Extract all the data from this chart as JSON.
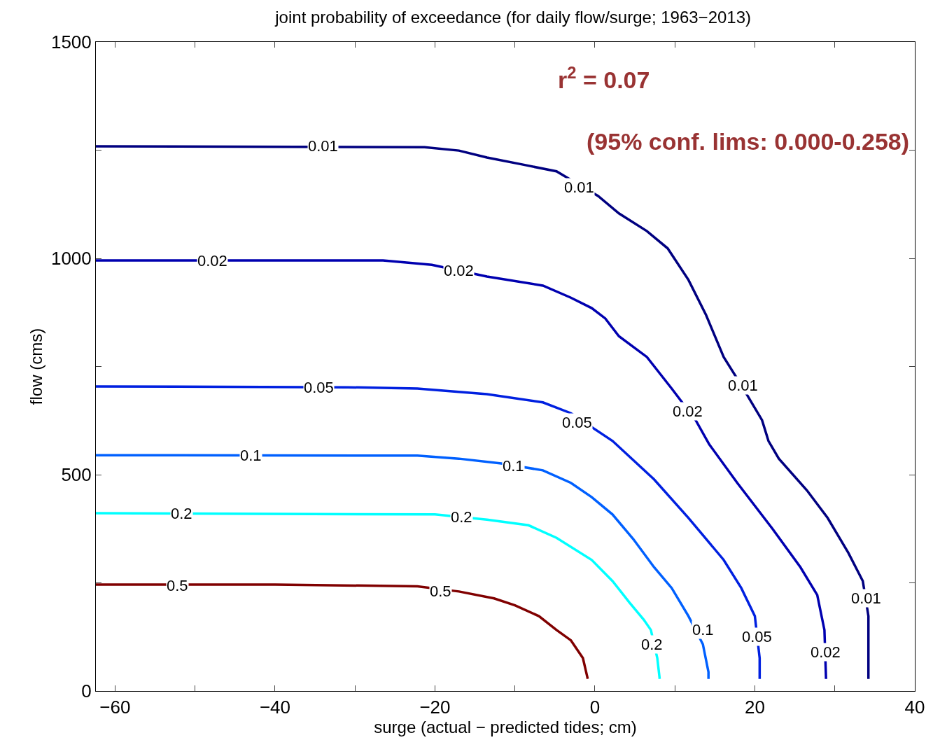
{
  "chart_data": {
    "type": "line",
    "title": "joint probability of exceedance (for daily flow/surge; 1963−2013)",
    "xlabel": "surge (actual − predicted tides; cm)",
    "ylabel": "flow (cms)",
    "xlim": [
      -62.4,
      40
    ],
    "ylim": [
      0,
      1500
    ],
    "xticks": [
      {
        "value": -60,
        "label": "−60"
      },
      {
        "value": -50,
        "label": null
      },
      {
        "value": -40,
        "label": "−40"
      },
      {
        "value": -30,
        "label": null
      },
      {
        "value": -20,
        "label": "−20"
      },
      {
        "value": -10,
        "label": null
      },
      0,
      {
        "value": 10,
        "label": null
      },
      20,
      {
        "value": 30,
        "label": null
      },
      40
    ],
    "yticks": [
      0,
      {
        "value": 250,
        "label": null
      },
      500,
      {
        "value": 750,
        "label": null
      },
      1000,
      {
        "value": 1250,
        "label": null
      },
      1500
    ],
    "marker": "none",
    "line_style": "solid",
    "series": [
      {
        "color": "#000080",
        "x": [
          -62.4,
          -21.3,
          -17,
          -13.5,
          -9.1,
          -4.8,
          0.4,
          3.0,
          6.5,
          9.1,
          11.7,
          13.9,
          16.1,
          18.3,
          20.9,
          21.7,
          23.0,
          26.5,
          29.1,
          31.7,
          33.5,
          34.2,
          34.2
        ],
        "values": [
          1259,
          1257,
          1249,
          1233,
          1217,
          1201,
          1144,
          1104,
          1063,
          1023,
          950,
          869,
          772,
          707,
          626,
          578,
          537,
          464,
          400,
          319,
          254,
          173,
          28
        ]
      },
      {
        "color": "#0000b0",
        "x": [
          -62.4,
          -26.5,
          -20.4,
          -13.5,
          -6.5,
          -3.0,
          -0.4,
          1.3,
          3.0,
          6.5,
          9.6,
          12.6,
          14.3,
          17.8,
          22.2,
          25.7,
          27.8,
          28.7,
          28.9
        ],
        "values": [
          995,
          995,
          985,
          958,
          937,
          909,
          885,
          861,
          820,
          772,
          699,
          626,
          570,
          481,
          375,
          286,
          222,
          141,
          28
        ]
      },
      {
        "color": "#0020e0",
        "x": [
          -62.4,
          -30.9,
          -22.2,
          -13.5,
          -6.5,
          -3.0,
          2.2,
          7.4,
          11.7,
          16.1,
          18.3,
          20.0,
          20.6,
          20.6
        ],
        "values": [
          704,
          702,
          699,
          686,
          667,
          642,
          578,
          489,
          400,
          303,
          238,
          173,
          76,
          28
        ]
      },
      {
        "color": "#0060ff",
        "x": [
          -62.4,
          -22.2,
          -17,
          -11.7,
          -6.5,
          -3.0,
          -0.4,
          2.2,
          4.8,
          7.4,
          9.6,
          11.7,
          13.5,
          14.2,
          14.2
        ],
        "values": [
          545,
          544,
          537,
          526,
          510,
          481,
          448,
          408,
          351,
          286,
          238,
          173,
          108,
          44,
          28
        ]
      },
      {
        "color": "#00ffff",
        "x": [
          -62.4,
          -20,
          -13.5,
          -8.3,
          -4.8,
          -0.4,
          2.2,
          4.3,
          6.1,
          7.0,
          7.8,
          8.1
        ],
        "values": [
          411,
          408,
          396,
          383,
          354,
          303,
          254,
          205,
          165,
          141,
          76,
          28
        ]
      },
      {
        "color": "#800000",
        "x": [
          -62.4,
          -40,
          -22.2,
          -17,
          -12.6,
          -10,
          -7,
          -4.8,
          -3,
          -1.5,
          -0.9
        ],
        "values": [
          246,
          246,
          242,
          230,
          214,
          198,
          173,
          141,
          117,
          76,
          28
        ]
      }
    ],
    "annotations": [
      {
        "text": "0.01",
        "x": -34.0,
        "y": 1259
      },
      {
        "text": "0.01",
        "x": -2.0,
        "y": 1165
      },
      {
        "text": "0.01",
        "x": 18.5,
        "y": 707
      },
      {
        "text": "0.01",
        "x": 33.9,
        "y": 215
      },
      {
        "text": "0.02",
        "x": -47.8,
        "y": 994
      },
      {
        "text": "0.02",
        "x": -17.0,
        "y": 972
      },
      {
        "text": "0.02",
        "x": 11.6,
        "y": 646
      },
      {
        "text": "0.02",
        "x": 28.8,
        "y": 90
      },
      {
        "text": "0.05",
        "x": -34.5,
        "y": 702
      },
      {
        "text": "0.05",
        "x": -2.2,
        "y": 621
      },
      {
        "text": "0.05",
        "x": 20.3,
        "y": 125
      },
      {
        "text": "0.1",
        "x": -43.0,
        "y": 545
      },
      {
        "text": "0.1",
        "x": -10.2,
        "y": 521
      },
      {
        "text": "0.1",
        "x": 13.5,
        "y": 141
      },
      {
        "text": "0.2",
        "x": -51.7,
        "y": 411
      },
      {
        "text": "0.2",
        "x": -16.7,
        "y": 402
      },
      {
        "text": "0.2",
        "x": 7.1,
        "y": 108
      },
      {
        "text": "0.5",
        "x": -52.2,
        "y": 244
      },
      {
        "text": "0.5",
        "x": -19.3,
        "y": 230
      },
      "r$^{2}$ = 0.07",
      "(95% conf. lims: 0.000-0.258)"
    ]
  }
}
